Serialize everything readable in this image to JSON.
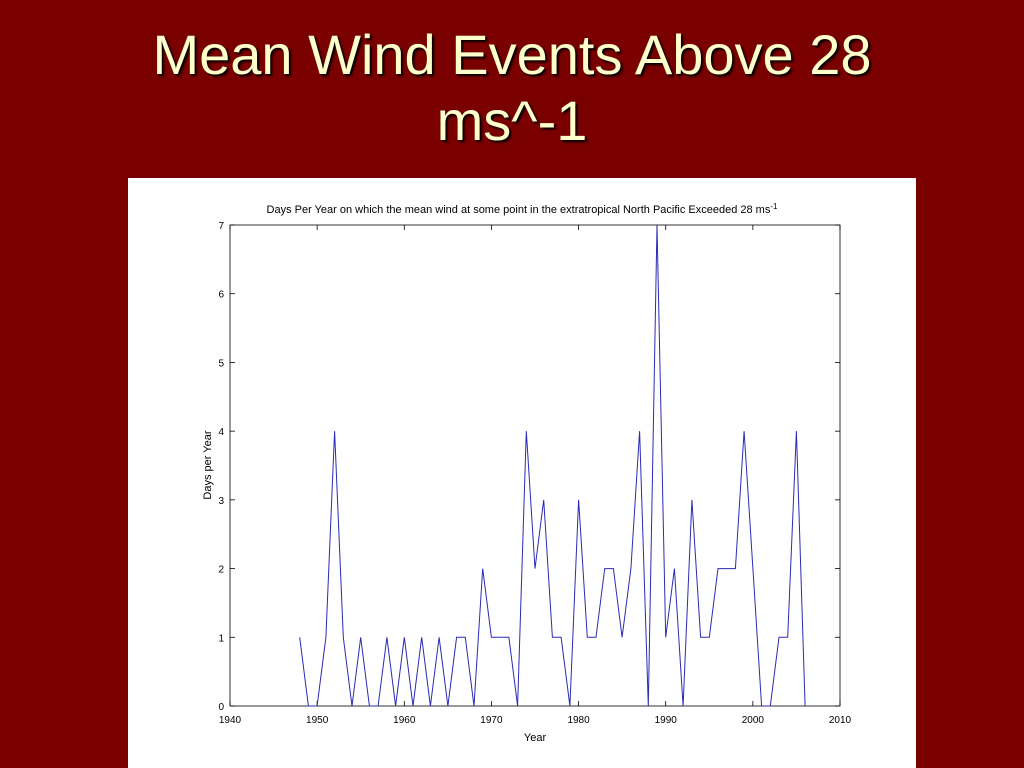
{
  "slide": {
    "title_line1": "Mean Wind Events Above 28",
    "title_line2": "ms^-1"
  },
  "colors": {
    "background": "#7a0000",
    "title_text": "#ffffcc",
    "line": "#2b2bb5"
  },
  "chart_data": {
    "type": "line",
    "title": "Days Per Year on which the mean wind at some point in the extratropical North Pacific Exceeded 28 ms",
    "title_superscript": "-1",
    "xlabel": "Year",
    "ylabel": "Days per Year",
    "xlim": [
      1940,
      2010
    ],
    "ylim": [
      0,
      7
    ],
    "x_ticks": [
      1940,
      1950,
      1960,
      1970,
      1980,
      1990,
      2000,
      2010
    ],
    "y_ticks": [
      0,
      1,
      2,
      3,
      4,
      5,
      6,
      7
    ],
    "grid": false,
    "x": [
      1948,
      1949,
      1950,
      1951,
      1952,
      1953,
      1954,
      1955,
      1956,
      1957,
      1958,
      1959,
      1960,
      1961,
      1962,
      1963,
      1964,
      1965,
      1966,
      1967,
      1968,
      1969,
      1970,
      1971,
      1972,
      1973,
      1974,
      1975,
      1976,
      1977,
      1978,
      1979,
      1980,
      1981,
      1982,
      1983,
      1984,
      1985,
      1986,
      1987,
      1988,
      1989,
      1990,
      1991,
      1992,
      1993,
      1994,
      1995,
      1996,
      1997,
      1998,
      1999,
      2000,
      2001,
      2002,
      2003,
      2004,
      2005,
      2006
    ],
    "y": [
      1,
      0,
      0,
      1,
      4,
      1,
      0,
      1,
      0,
      0,
      1,
      0,
      1,
      0,
      1,
      0,
      1,
      0,
      1,
      1,
      0,
      2,
      1,
      1,
      1,
      0,
      4,
      2,
      3,
      1,
      1,
      0,
      3,
      1,
      1,
      2,
      2,
      1,
      2,
      4,
      0,
      7,
      1,
      2,
      0,
      3,
      1,
      1,
      2,
      2,
      2,
      4,
      2,
      0,
      0,
      1,
      1,
      4,
      0
    ]
  }
}
